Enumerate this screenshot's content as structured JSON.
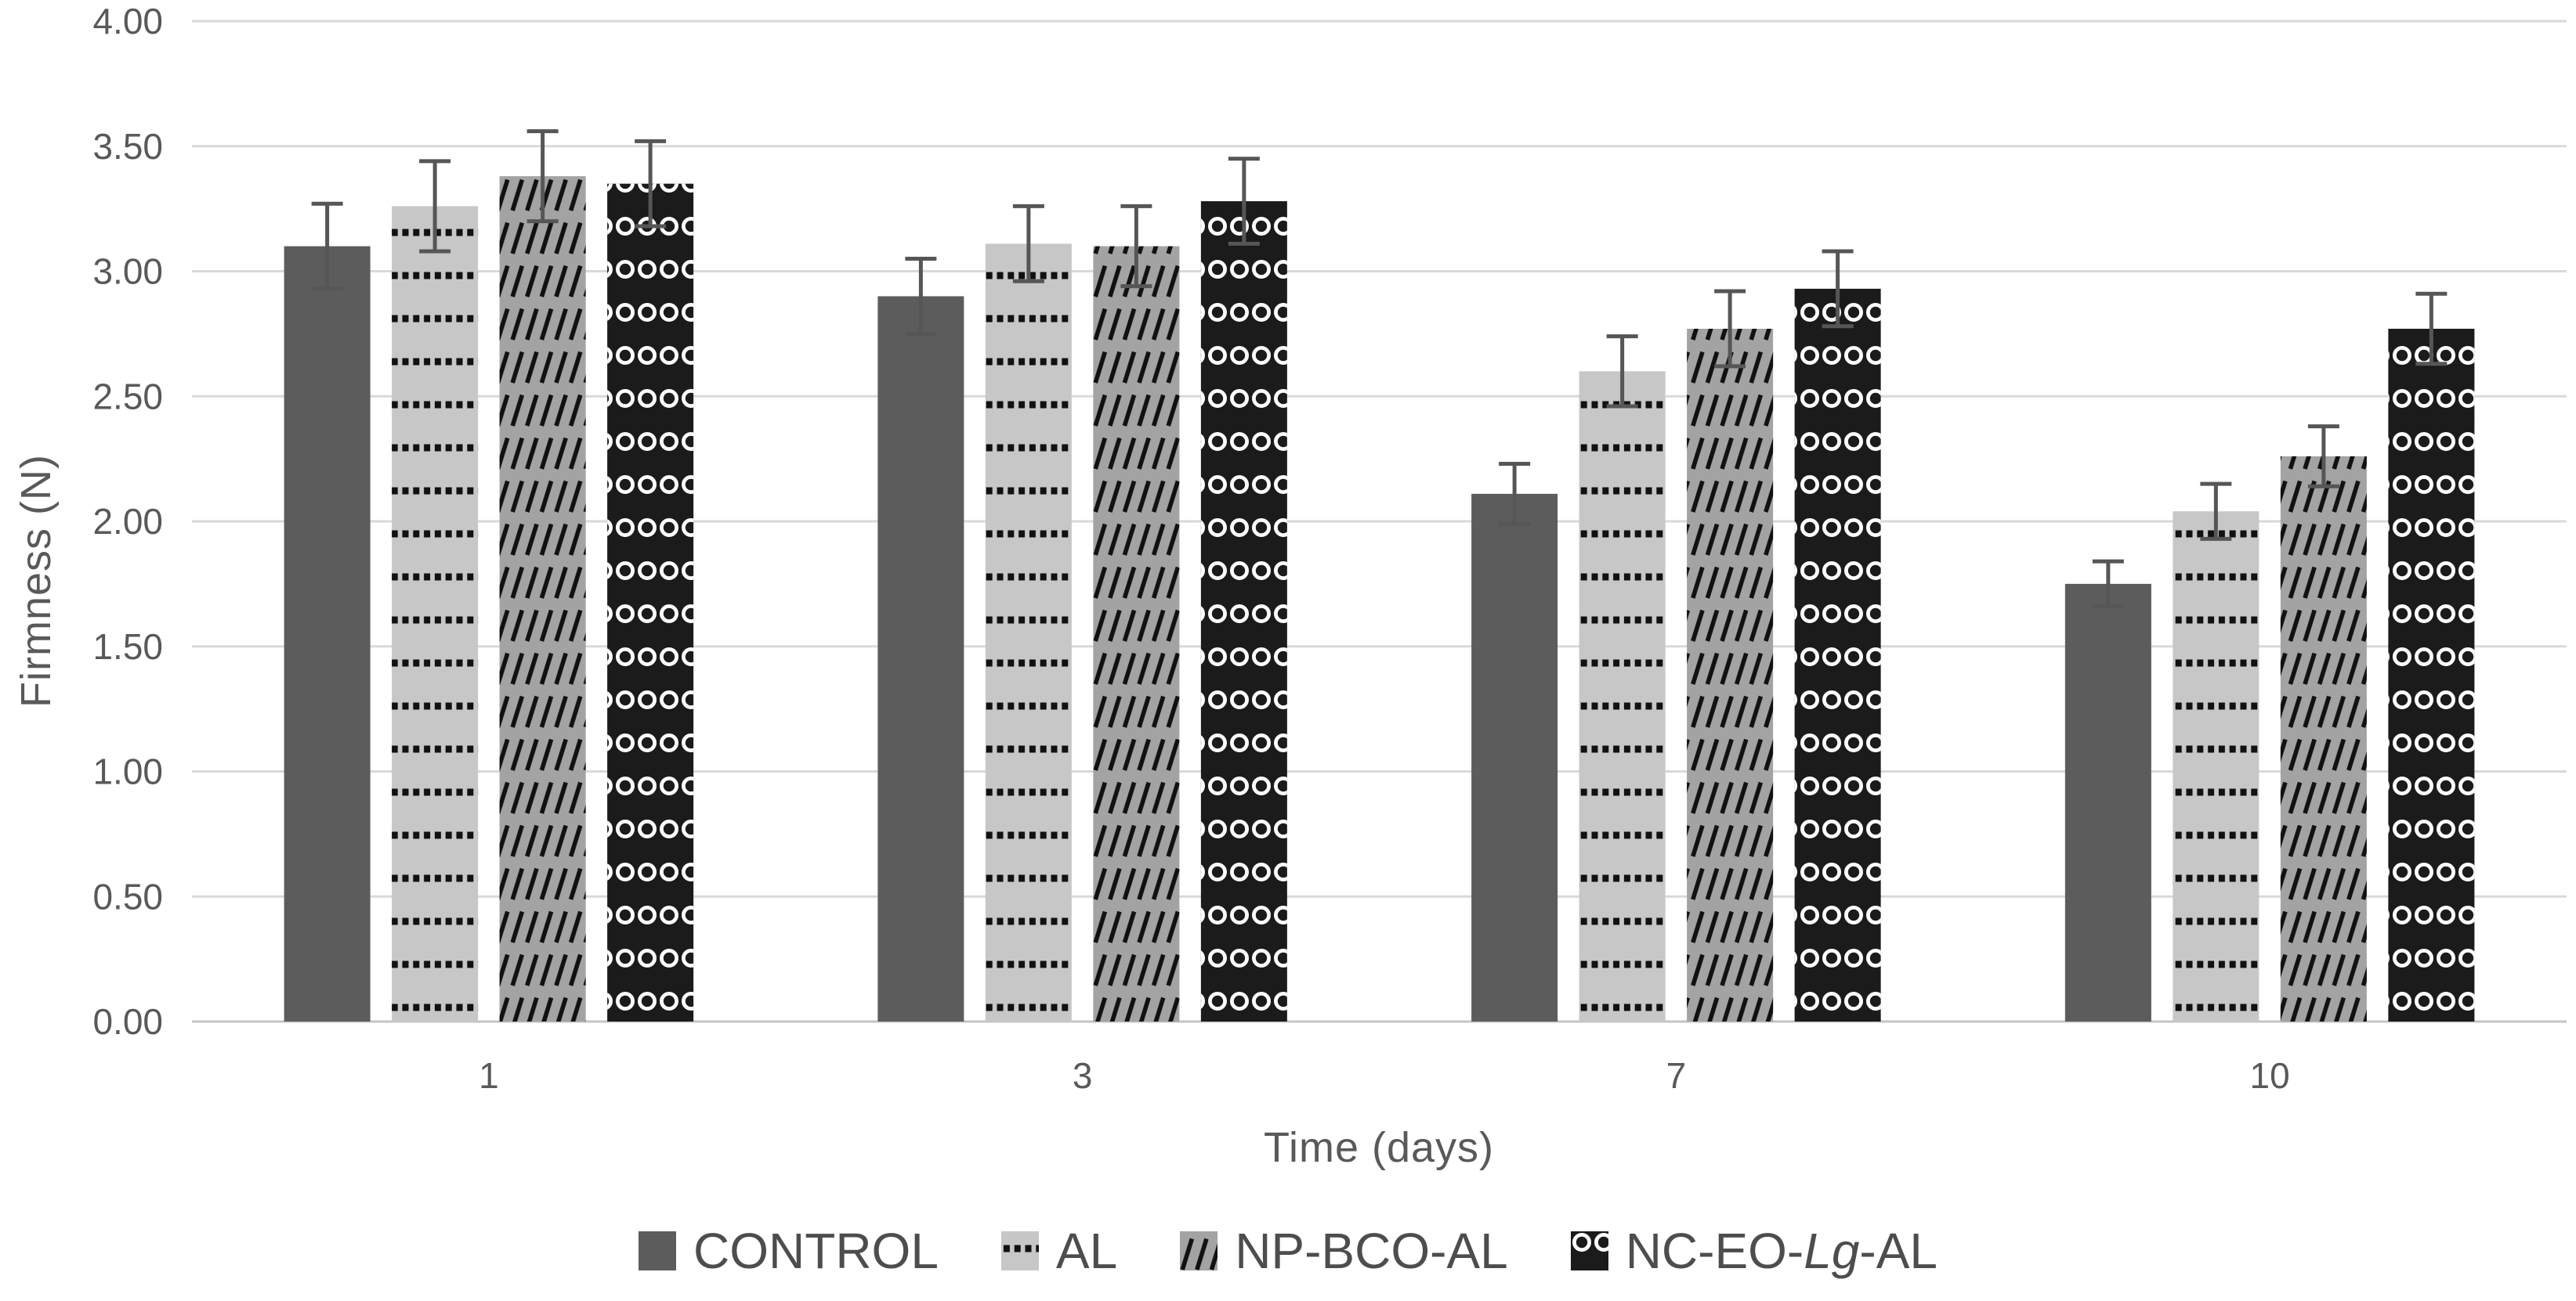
{
  "chart_data": {
    "type": "bar",
    "title": "",
    "xlabel": "Time (days)",
    "ylabel": "Firmness (N)",
    "categories": [
      "1",
      "3",
      "7",
      "10"
    ],
    "series": [
      {
        "name": "CONTROL",
        "fill_pattern": "solid",
        "color": "#5c5c5c",
        "pattern_color": "#5c5c5c",
        "values": [
          3.1,
          2.9,
          2.11,
          1.75
        ],
        "errors": [
          0.17,
          0.15,
          0.12,
          0.09
        ]
      },
      {
        "name": "AL",
        "fill_pattern": "dotted-rows",
        "color": "#c7c7c7",
        "pattern_color": "#111111",
        "values": [
          3.26,
          3.11,
          2.6,
          2.04
        ],
        "errors": [
          0.18,
          0.15,
          0.14,
          0.11
        ]
      },
      {
        "name": "NP-BCO-AL",
        "fill_pattern": "diagonal-hatch",
        "color": "#a3a3a3",
        "pattern_color": "#111111",
        "values": [
          3.38,
          3.1,
          2.77,
          2.26
        ],
        "errors": [
          0.18,
          0.16,
          0.15,
          0.12
        ]
      },
      {
        "name": "NC-EO-Lg-AL",
        "name_parts": {
          "prefix": "NC-EO-",
          "italic": "Lg",
          "suffix": "-AL"
        },
        "fill_pattern": "ring-rows",
        "color": "#1b1b1b",
        "pattern_color": "#ffffff",
        "values": [
          3.35,
          3.28,
          2.93,
          2.77
        ],
        "errors": [
          0.17,
          0.17,
          0.15,
          0.14
        ]
      }
    ],
    "ylim": [
      0,
      4
    ],
    "ytick_step": 0.5,
    "y_tick_labels": [
      "0.00",
      "0.50",
      "1.00",
      "1.50",
      "2.00",
      "2.50",
      "3.00",
      "3.50",
      "4.00"
    ],
    "grid": true,
    "error_bars": true,
    "legend_position": "bottom",
    "colors": {
      "background": "#ffffff",
      "gridline": "#d9d9d9",
      "axis_line": "#c4c4c4",
      "tick_text": "#595959",
      "axis_title_text": "#595959",
      "legend_text": "#4d4d4d",
      "error_bar": "#565656"
    }
  }
}
